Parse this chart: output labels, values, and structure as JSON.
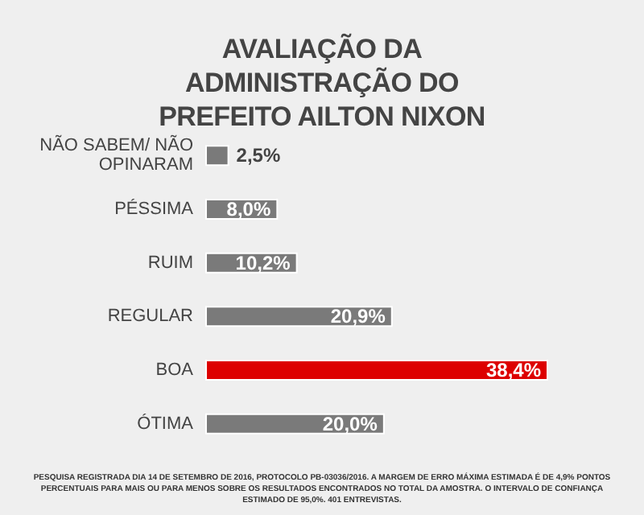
{
  "chart_data": {
    "type": "bar",
    "orientation": "horizontal",
    "title": "AVALIAÇÃO DA  ADMINISTRAÇÃO DO PREFEITO AILTON NIXON",
    "categories": [
      "NÃO SABEM/ NÃO OPINARAM",
      "PÉSSIMA",
      "RUIM",
      "REGULAR",
      "BOA",
      "ÓTIMA"
    ],
    "values": [
      2.5,
      8.0,
      10.2,
      20.9,
      38.4,
      20.0
    ],
    "value_labels": [
      "2,5%",
      "8,0%",
      "10,2%",
      "20,9%",
      "38,4%",
      "20,0%"
    ],
    "colors": [
      "#7a7a7a",
      "#7a7a7a",
      "#7a7a7a",
      "#7a7a7a",
      "#dd0000",
      "#7a7a7a"
    ],
    "annotations": [
      "PESQUISA REGISTRADA DIA 14 DE SETEMBRO DE 2016, PROTOCOLO PB-03036/2016. A MARGEM DE ERRO MÁXIMA ESTIMADA É DE 4,9% PONTOS PERCENTUAIS PARA MAIS OU PARA MENOS SOBRE OS RESULTADOS ENCONTRADOS NO TOTAL DA AMOSTRA. O INTERVALO DE CONFIANÇA ESTIMADO DE 95,0%. 401 ENTREVISTAS."
    ]
  }
}
